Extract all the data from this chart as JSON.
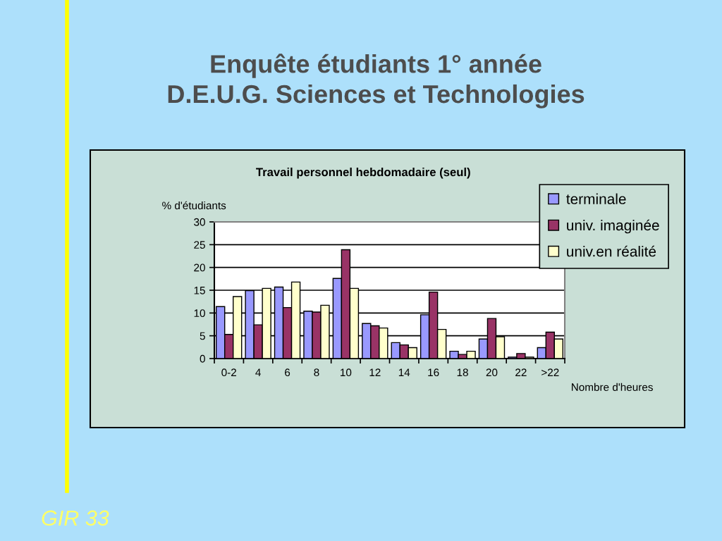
{
  "chart_data": {
    "type": "bar",
    "title": "Enquête étudiants 1° année\nD.E.U.G. Sciences et Technologies",
    "subtitle": "Travail personnel hebdomadaire (seul)",
    "xlabel": "Nombre d'heures",
    "ylabel": "% d'étudiants",
    "annotations": [
      "GIR 33"
    ],
    "categories": [
      "0-2",
      "4",
      "6",
      "8",
      "10",
      "12",
      "14",
      "16",
      "18",
      "20",
      "22",
      ">22"
    ],
    "series": [
      {
        "name": "terminale",
        "color": "#9999ff",
        "values": [
          11.4,
          14.9,
          15.7,
          10.4,
          17.6,
          7.7,
          3.5,
          9.6,
          1.6,
          4.3,
          0.3,
          2.4
        ]
      },
      {
        "name": "univ. imaginée",
        "color": "#993366",
        "values": [
          5.3,
          7.4,
          11.2,
          10.2,
          23.9,
          7.2,
          3.0,
          14.6,
          0.9,
          8.8,
          1.1,
          5.8
        ]
      },
      {
        "name": "univ.en réalité",
        "color": "#ffffcc",
        "values": [
          13.6,
          15.4,
          16.8,
          11.7,
          15.4,
          6.7,
          2.4,
          6.4,
          1.6,
          4.8,
          0.3,
          4.3
        ]
      }
    ],
    "ylim": [
      0,
      30
    ],
    "yticks": [
      0,
      5,
      10,
      15,
      20,
      25,
      30
    ],
    "grid": "y",
    "legend": "top right"
  }
}
